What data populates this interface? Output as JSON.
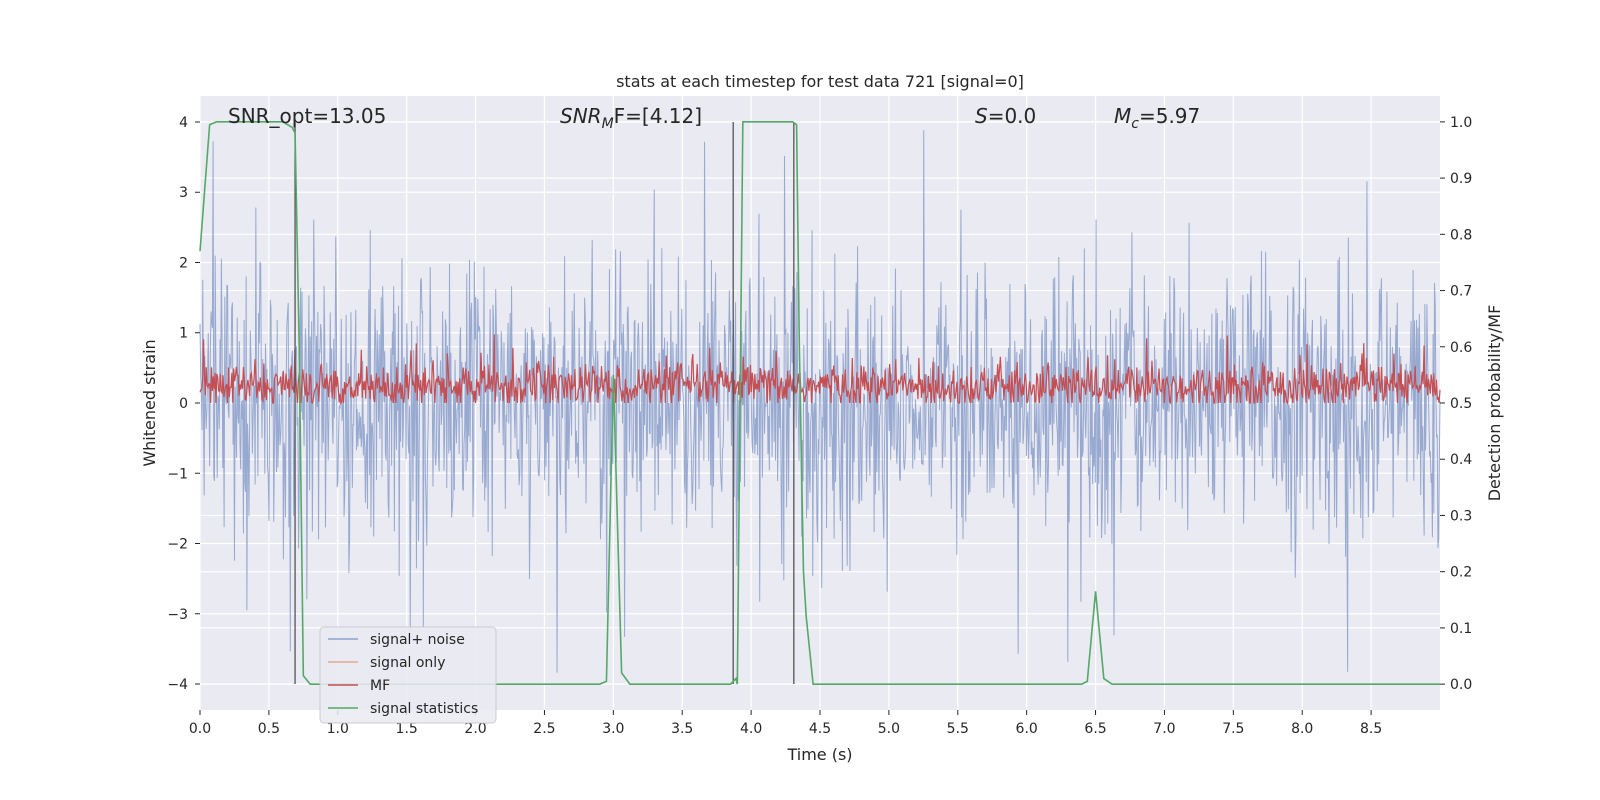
{
  "chart_data": {
    "type": "line",
    "title": "stats at each timestep for test data 721 [signal=0]",
    "xlabel": "Time (s)",
    "ylabel_left": "Whitened strain",
    "ylabel_right": "Detection probability/MF",
    "xlim": [
      0,
      9
    ],
    "ylim_left": [
      -4.37,
      4.37
    ],
    "ylim_right": [
      -0.046,
      1.046
    ],
    "x_ticks": [
      "0.0",
      "0.5",
      "1.0",
      "1.5",
      "2.0",
      "2.5",
      "3.0",
      "3.5",
      "4.0",
      "4.5",
      "5.0",
      "5.5",
      "6.0",
      "6.5",
      "7.0",
      "7.5",
      "8.0",
      "8.5"
    ],
    "y_ticks_left": [
      "−4",
      "−3",
      "−2",
      "−1",
      "0",
      "1",
      "2",
      "3",
      "4"
    ],
    "y_ticks_right": [
      "0.0",
      "0.1",
      "0.2",
      "0.3",
      "0.4",
      "0.5",
      "0.6",
      "0.7",
      "0.8",
      "0.9",
      "1.0"
    ],
    "grid": true,
    "legend_position": "lower-left",
    "annotations": {
      "snr_opt": "SNR_opt=13.05",
      "snr_mf_pre": "SNR",
      "snr_mf_sub": "M",
      "snr_mf_post": "F=[4.12]",
      "s_var": "S",
      "s_val": "=0.0",
      "mc_var": "M",
      "mc_sub": "c",
      "mc_val": "=5.97"
    },
    "series": [
      {
        "name": "signal+ noise",
        "color": "#8ea2cc",
        "axis": "left",
        "note_values": "dense noise band roughly within [-2.5, 2.5], spikes reaching about +/-3.9"
      },
      {
        "name": "signal only",
        "color": "#e8a88f",
        "axis": "left",
        "values": []
      },
      {
        "name": "MF",
        "color": "#c44e52",
        "axis": "right",
        "note_values": "noisy band around 0.53, ranging roughly 0.5 to 0.62"
      },
      {
        "name": "signal statistics",
        "color": "#55a868",
        "axis": "right",
        "x": [
          0.0,
          0.07,
          0.12,
          0.5,
          0.6,
          0.67,
          0.69,
          0.72,
          0.75,
          0.8,
          2.9,
          2.95,
          3.0,
          3.06,
          3.12,
          3.85,
          3.89,
          3.9,
          3.94,
          4.0,
          4.3,
          4.33,
          4.35,
          4.38,
          4.4,
          4.45,
          6.4,
          6.44,
          6.5,
          6.56,
          6.62,
          9.0
        ],
        "values": [
          0.77,
          0.995,
          1.0,
          1.0,
          1.0,
          0.99,
          0.98,
          0.6,
          0.015,
          0.0,
          0.0,
          0.005,
          0.55,
          0.02,
          0.0,
          0.0,
          0.01,
          0.0,
          1.0,
          1.0,
          1.0,
          0.995,
          0.6,
          0.2,
          0.12,
          0.0,
          0.0,
          0.005,
          0.165,
          0.01,
          0.0,
          0.0
        ]
      }
    ],
    "vertical_lines_x": [
      0.69,
      3.87,
      4.31
    ]
  }
}
